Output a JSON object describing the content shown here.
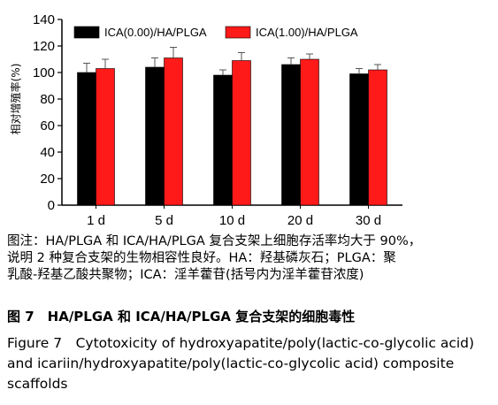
{
  "chart_data": {
    "type": "bar",
    "categories": [
      "1 d",
      "5 d",
      "10 d",
      "20 d",
      "30 d"
    ],
    "series": [
      {
        "name": "ICA(0.00)/HA/PLGA",
        "color": "#000000",
        "values": [
          100,
          104,
          98,
          106,
          99
        ],
        "errors": [
          7,
          7,
          4,
          5,
          4
        ]
      },
      {
        "name": "ICA(1.00)/HA/PLGA",
        "color": "#ff1a1a",
        "values": [
          103,
          111,
          109,
          110,
          102
        ],
        "errors": [
          7,
          8,
          6,
          4,
          4
        ]
      }
    ],
    "ylabel": "相对增殖率(%)",
    "xlabel": "",
    "ylim": [
      0,
      140
    ],
    "yticks": [
      0,
      20,
      40,
      60,
      80,
      100,
      120,
      140
    ],
    "grid": false,
    "legend_position": "top"
  },
  "caption": {
    "note_lines": [
      "图注：HA/PLGA 和 ICA/HA/PLGA 复合支架上细胞存活率均大于 90%，",
      "说明 2 种复合支架的生物相容性良好。HA：羟基磷灰石；PLGA：聚",
      "乳酸-羟基乙酸共聚物；ICA：淫羊藿苷(括号内为淫羊藿苷浓度)"
    ],
    "figure_cn": "图 7　HA/PLGA 和 ICA/HA/PLGA 复合支架的细胞毒性",
    "figure_en": "Figure 7　Cytotoxicity of hydroxyapatite/poly(lactic-co-glycolic acid) and icariin/hydroxyapatite/poly(lactic-co-glycolic acid) composite scaffolds"
  }
}
